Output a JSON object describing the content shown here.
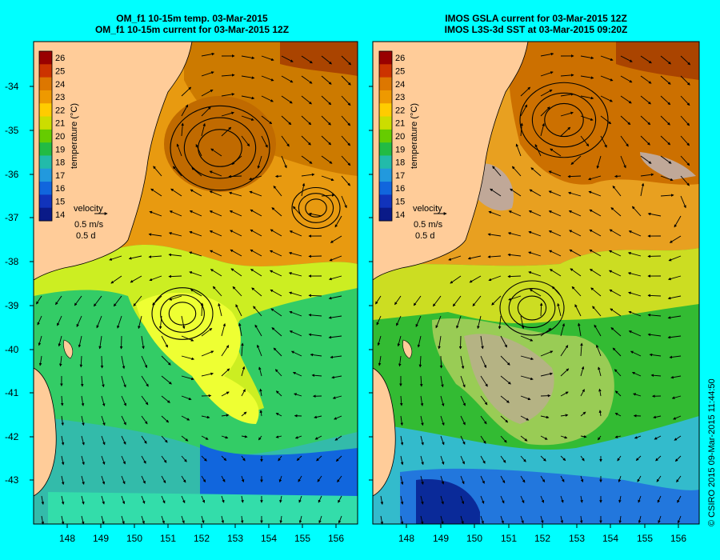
{
  "left_panel": {
    "title_line1": "OM_f1 10-15m temp. 03-Mar-2015",
    "title_line2": "OM_f1 10-15m current for 03-Mar-2015 12Z",
    "velocity_label": "velocity",
    "velocity_speed": "0.5 m/s",
    "velocity_time": "0.5 d"
  },
  "right_panel": {
    "title_line1": "IMOS GSLA current for 03-Mar-2015 12Z",
    "title_line2": "IMOS L3S-3d SST at 03-Mar-2015 09:20Z",
    "velocity_label": "velocity",
    "velocity_speed": "0.5 m/s",
    "velocity_time": "0.5 d"
  },
  "colorbar": {
    "label": "temperature (°C)",
    "ticks": [
      "26",
      "25",
      "24",
      "23",
      "22",
      "21",
      "20",
      "19",
      "18",
      "17",
      "16",
      "15",
      "14"
    ]
  },
  "axes": {
    "lon_ticks": [
      "148",
      "149",
      "150",
      "151",
      "152",
      "153",
      "154",
      "155",
      "156"
    ],
    "lat_ticks": [
      "-34",
      "-35",
      "-36",
      "-37",
      "-38",
      "-39",
      "-40",
      "-41",
      "-42",
      "-43"
    ]
  },
  "credit": "© CSIRO 2015   09-Mar-2015 11:44:50",
  "colors": {
    "background": "#00ffff",
    "land": "#ffcc99",
    "no_data": "#c0a898",
    "warm": "#cc6600",
    "mid": "#ffff00",
    "cool": "#00cc33",
    "cold": "#0033cc"
  }
}
